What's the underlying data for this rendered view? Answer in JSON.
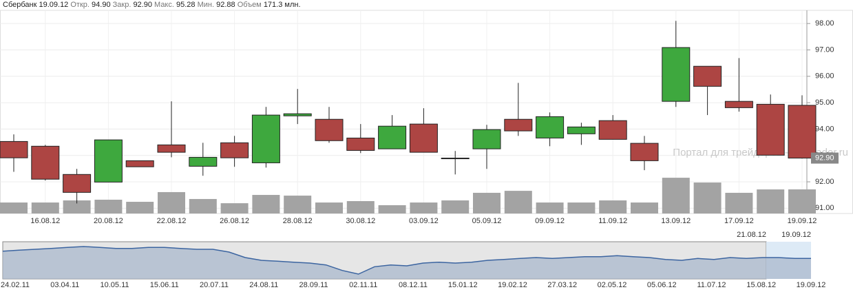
{
  "header": {
    "ticker": "Сбербанк",
    "date": "19.09.12",
    "fields": [
      {
        "label": "Откр.",
        "value": "94.90"
      },
      {
        "label": "Закр.",
        "value": "92.90"
      },
      {
        "label": "Макс.",
        "value": "95.28"
      },
      {
        "label": "Мин.",
        "value": "92.88"
      },
      {
        "label": "Объем",
        "value": "171.3 млн."
      }
    ]
  },
  "chart_data": {
    "type": "candlestick",
    "categories": [
      null,
      "16.08.12",
      null,
      "20.08.12",
      null,
      "22.08.12",
      null,
      "26.08.12",
      null,
      "28.08.12",
      null,
      "30.08.12",
      null,
      "03.09.12",
      null,
      "05.09.12",
      null,
      "09.09.12",
      null,
      "11.09.12",
      null,
      "13.09.12",
      null,
      "17.09.12",
      null,
      "19.09.12"
    ],
    "open": [
      93.53,
      93.35,
      92.28,
      91.99,
      92.8,
      93.4,
      92.59,
      93.48,
      92.72,
      94.5,
      94.37,
      93.66,
      93.25,
      94.19,
      92.9,
      93.25,
      94.37,
      93.66,
      93.82,
      94.32,
      93.46,
      95.05,
      96.38,
      95.05,
      94.94,
      94.9
    ],
    "high": [
      93.8,
      93.4,
      92.49,
      93.59,
      92.8,
      95.05,
      93.48,
      93.74,
      94.84,
      95.52,
      94.84,
      94.19,
      94.53,
      94.79,
      93.17,
      94.16,
      95.75,
      94.63,
      94.24,
      94.53,
      93.74,
      98.1,
      96.38,
      96.69,
      95.31,
      95.28
    ],
    "low": [
      92.38,
      92.05,
      91.18,
      91.99,
      92.57,
      92.93,
      92.23,
      92.57,
      92.54,
      94.19,
      93.48,
      93.09,
      93.25,
      93.12,
      92.28,
      92.49,
      93.74,
      93.35,
      93.4,
      93.61,
      92.44,
      94.84,
      94.53,
      94.66,
      93.01,
      92.88
    ],
    "close": [
      92.91,
      92.1,
      91.6,
      93.59,
      92.57,
      93.12,
      92.93,
      92.91,
      94.53,
      94.58,
      93.56,
      93.19,
      94.11,
      93.12,
      92.88,
      93.98,
      93.93,
      94.47,
      94.08,
      93.61,
      92.8,
      97.09,
      95.62,
      94.81,
      93.01,
      92.9
    ],
    "volume": [
      78,
      78,
      93,
      98,
      83,
      152,
      103,
      73,
      132,
      127,
      78,
      88,
      59,
      78,
      93,
      147,
      161,
      78,
      78,
      93,
      78,
      254,
      220,
      147,
      171,
      171.3
    ],
    "colors": {
      "up": "#3ea83e",
      "down": "#ad4543",
      "volume": "#a3a3a3"
    },
    "ylim": [
      90.8,
      98.5
    ],
    "yticks": [
      {
        "value": 91,
        "label": "91.00"
      },
      {
        "value": 92,
        "label": "92.00"
      },
      {
        "value": 93,
        "label": "93.00"
      },
      {
        "value": 94,
        "label": "94.00"
      },
      {
        "value": 95,
        "label": "95.00"
      },
      {
        "value": 96,
        "label": "96.00"
      },
      {
        "value": 97,
        "label": "97.00"
      },
      {
        "value": 98,
        "label": "98.00"
      }
    ],
    "grid": true,
    "last_price": {
      "value": 92.9,
      "label": "92.90"
    },
    "watermark": "Портал для трейдеров - ForTrader.ru",
    "navigator": {
      "range_labels": [
        "21.08.12",
        "19.09.12"
      ],
      "x_labels": [
        "24.02.11",
        "03.04.11",
        "10.05.11",
        "15.06.11",
        "20.07.11",
        "24.08.11",
        "28.09.11",
        "02.11.11",
        "08.12.11",
        "15.01.12",
        "19.02.12",
        "27.03.12",
        "02.05.12",
        "05.06.12",
        "11.07.12",
        "15.08.12",
        "19.09.12"
      ],
      "values": [
        101,
        102,
        103,
        104,
        105,
        106,
        105,
        104,
        104,
        105,
        105,
        104,
        103,
        103,
        100,
        94,
        91,
        90,
        89,
        88,
        86,
        80,
        76,
        84,
        86,
        85,
        88,
        89,
        88,
        89,
        91,
        92,
        93,
        94,
        93,
        94,
        95,
        95,
        96,
        95,
        94,
        92,
        91,
        93,
        92,
        94,
        93,
        94,
        94,
        93,
        93
      ]
    }
  }
}
